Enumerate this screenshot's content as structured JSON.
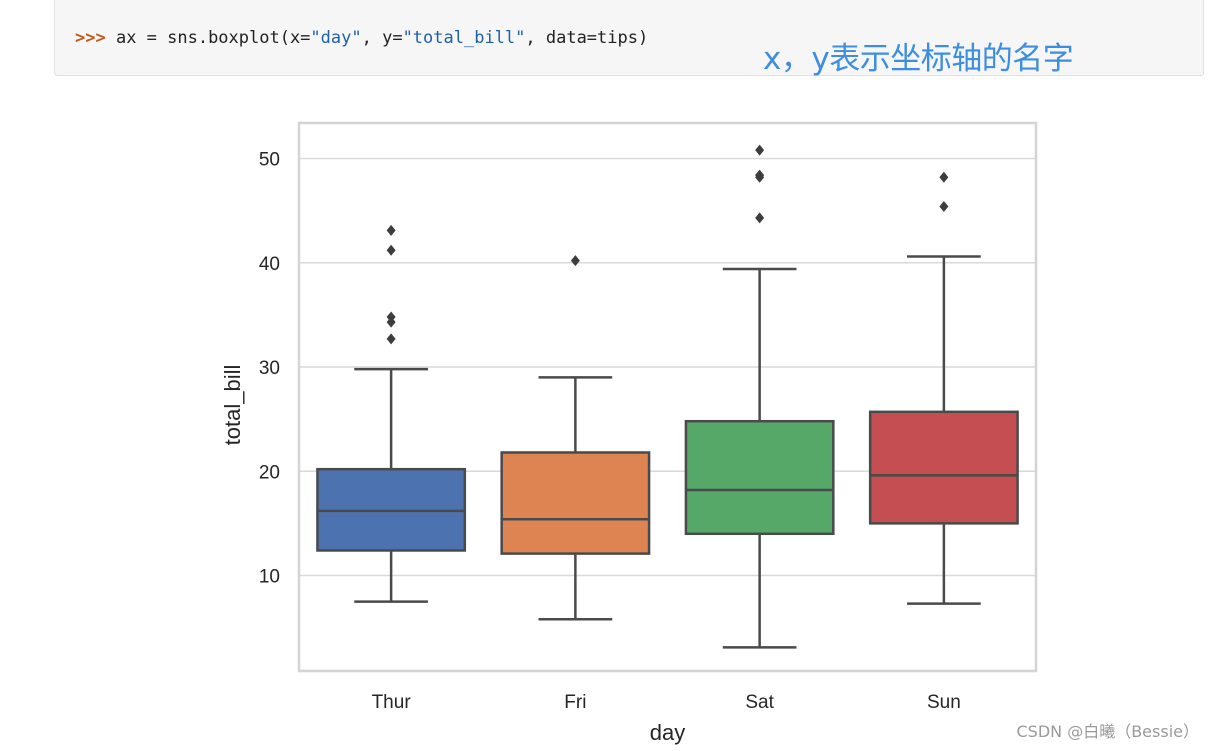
{
  "code": {
    "prompt": ">>> ",
    "segments": [
      {
        "text": "ax = sns.boxplot(x=",
        "kind": "plain"
      },
      {
        "text": "\"day\"",
        "kind": "string"
      },
      {
        "text": ", y=",
        "kind": "plain"
      },
      {
        "text": "\"total_bill\"",
        "kind": "string"
      },
      {
        "text": ", data=tips)",
        "kind": "plain"
      }
    ]
  },
  "annotation": "x，y表示坐标轴的名字",
  "watermark": "CSDN @白曦（Bessie）",
  "chart_data": {
    "type": "boxplot",
    "xlabel": "day",
    "ylabel": "total_bill",
    "ylim": [
      1,
      54
    ],
    "yticks": [
      10,
      20,
      30,
      40,
      50
    ],
    "grid": true,
    "categories": [
      "Thur",
      "Fri",
      "Sat",
      "Sun"
    ],
    "colors": [
      "#4c72b0",
      "#dd8452",
      "#55a868",
      "#c44e52"
    ],
    "boxes": [
      {
        "category": "Thur",
        "whisker_low": 7.5,
        "q1": 12.4,
        "median": 16.2,
        "q3": 20.2,
        "whisker_high": 29.8,
        "outliers": [
          32.7,
          34.3,
          34.8,
          41.2,
          43.1
        ]
      },
      {
        "category": "Fri",
        "whisker_low": 5.8,
        "q1": 12.1,
        "median": 15.4,
        "q3": 21.8,
        "whisker_high": 29.0,
        "outliers": [
          40.2
        ]
      },
      {
        "category": "Sat",
        "whisker_low": 3.1,
        "q1": 14.0,
        "median": 18.2,
        "q3": 24.8,
        "whisker_high": 39.4,
        "outliers": [
          44.3,
          48.2,
          48.4,
          50.8
        ]
      },
      {
        "category": "Sun",
        "whisker_low": 7.3,
        "q1": 15.0,
        "median": 19.6,
        "q3": 25.7,
        "whisker_high": 40.6,
        "outliers": [
          45.4,
          48.2
        ]
      }
    ]
  }
}
